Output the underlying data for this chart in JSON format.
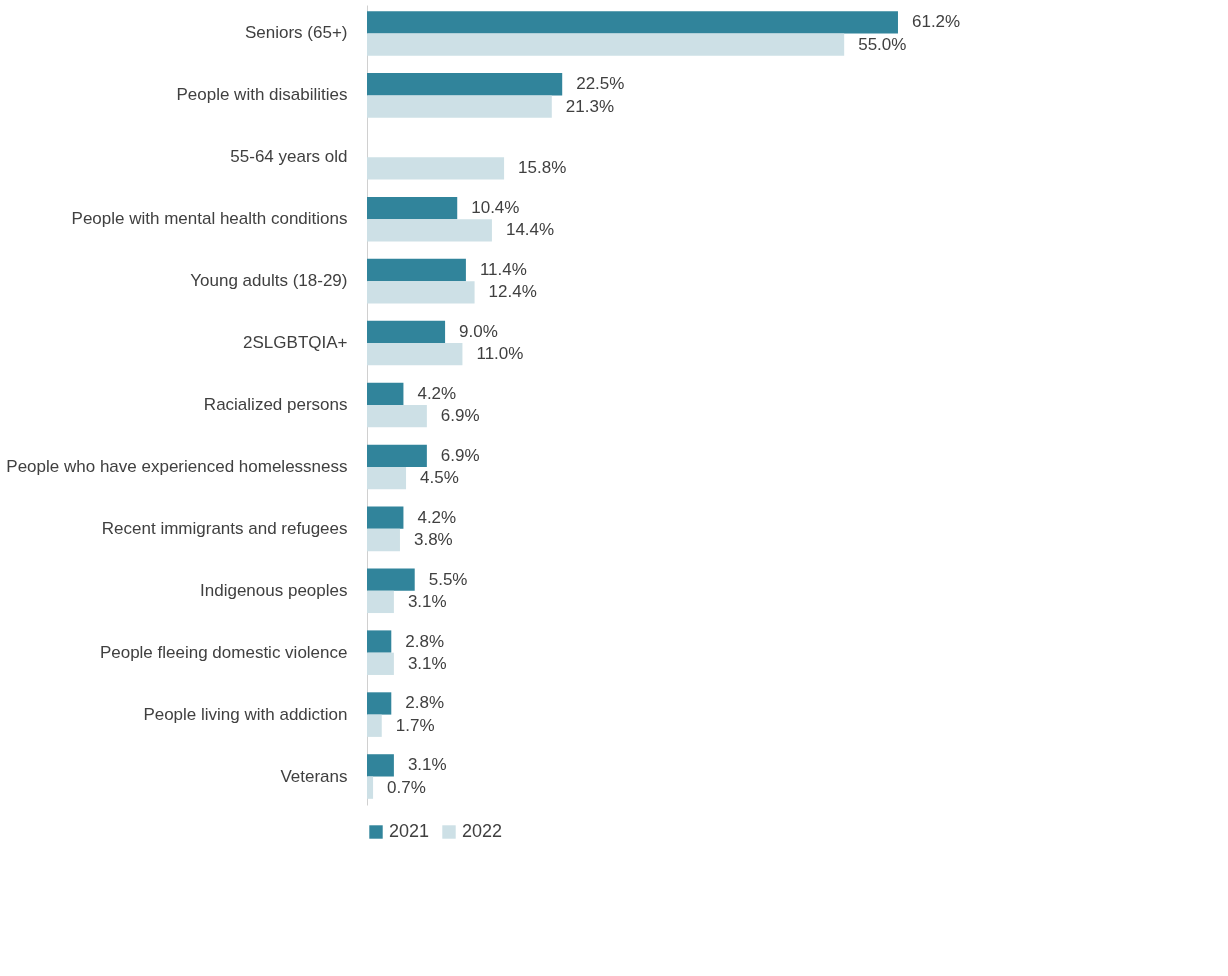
{
  "chart_data": {
    "type": "bar",
    "orientation": "horizontal",
    "legend": "bottom",
    "categories": [
      "Seniors (65+)",
      "People with disabilities",
      "55-64 years old",
      "People with mental health conditions",
      "Young adults (18-29)",
      "2SLGBTQIA+",
      "Racialized persons",
      "People who have experienced homelessness",
      "Recent immigrants and refugees",
      "Indigenous peoples",
      "People fleeing domestic violence",
      "People living with addiction",
      "Veterans"
    ],
    "series": [
      {
        "name": "2021",
        "color": "#31849b",
        "values": [
          61.2,
          22.5,
          null,
          10.4,
          11.4,
          9.0,
          4.2,
          6.9,
          4.2,
          5.5,
          2.8,
          2.8,
          3.1
        ],
        "value_labels": [
          "61.2%",
          "22.5%",
          null,
          "10.4%",
          "11.4%",
          "9.0%",
          "4.2%",
          "6.9%",
          "4.2%",
          "5.5%",
          "2.8%",
          "2.8%",
          "3.1%"
        ]
      },
      {
        "name": "2022",
        "color": "#cde0e6",
        "values": [
          55.0,
          21.3,
          15.8,
          14.4,
          12.4,
          11.0,
          6.9,
          4.5,
          3.8,
          3.1,
          3.1,
          1.7,
          0.7
        ],
        "value_labels": [
          "55.0%",
          "21.3%",
          "15.8%",
          "14.4%",
          "12.4%",
          "11.0%",
          "6.9%",
          "4.5%",
          "3.8%",
          "3.1%",
          "3.1%",
          "1.7%",
          "0.7%"
        ]
      }
    ]
  }
}
